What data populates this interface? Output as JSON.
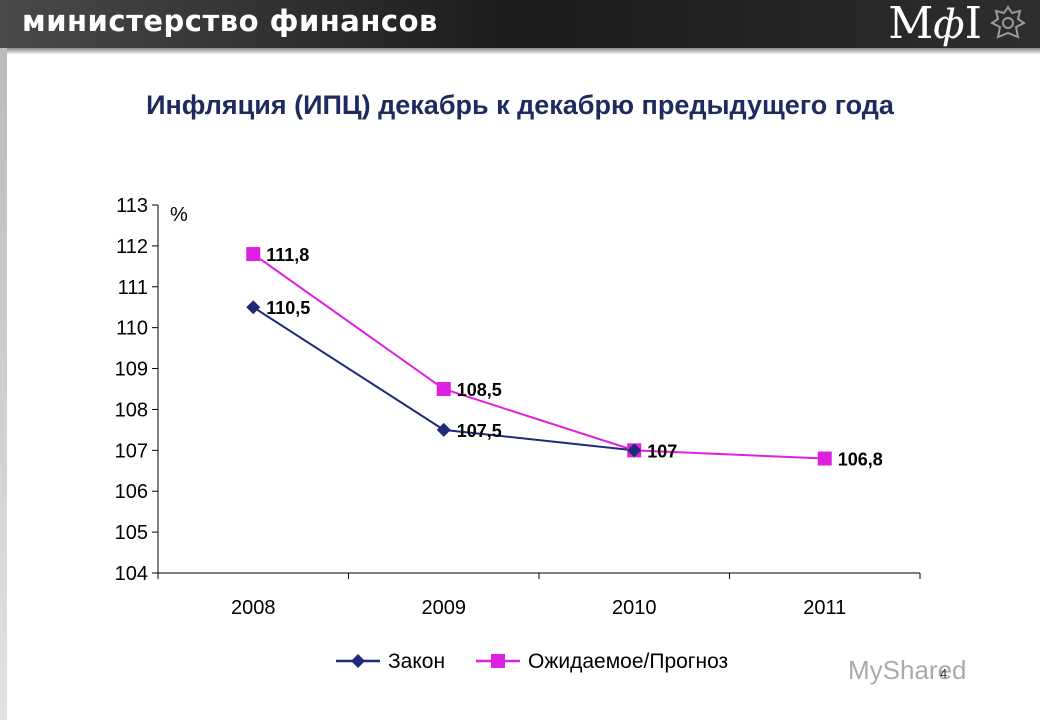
{
  "header": {
    "title": "министерство финансов",
    "logo_m": "М",
    "logo_phi": "ф",
    "logo_bar": "I"
  },
  "watermark": "MyShared",
  "slide_number": "4",
  "chart_data": {
    "type": "line",
    "title": "Инфляция (ИПЦ) декабрь к декабрю предыдущего года",
    "ylabel": "%",
    "categories": [
      "2008",
      "2009",
      "2010",
      "2011"
    ],
    "ylim": [
      104,
      113
    ],
    "yticks": [
      "113",
      "112",
      "111",
      "110",
      "109",
      "108",
      "107",
      "106",
      "105",
      "104"
    ],
    "legend_position": "bottom",
    "series": [
      {
        "name": "Закон",
        "color": "#1f2a78",
        "marker": "diamond",
        "values": [
          110.5,
          107.5,
          107,
          null
        ],
        "labels": [
          "110,5",
          "107,5",
          "",
          ""
        ]
      },
      {
        "name": "Ожидаемое/Прогноз",
        "color": "#e020e0",
        "marker": "square",
        "values": [
          111.8,
          108.5,
          107,
          106.8
        ],
        "labels": [
          "111,8",
          "108,5",
          "107",
          "106,8"
        ]
      }
    ]
  }
}
